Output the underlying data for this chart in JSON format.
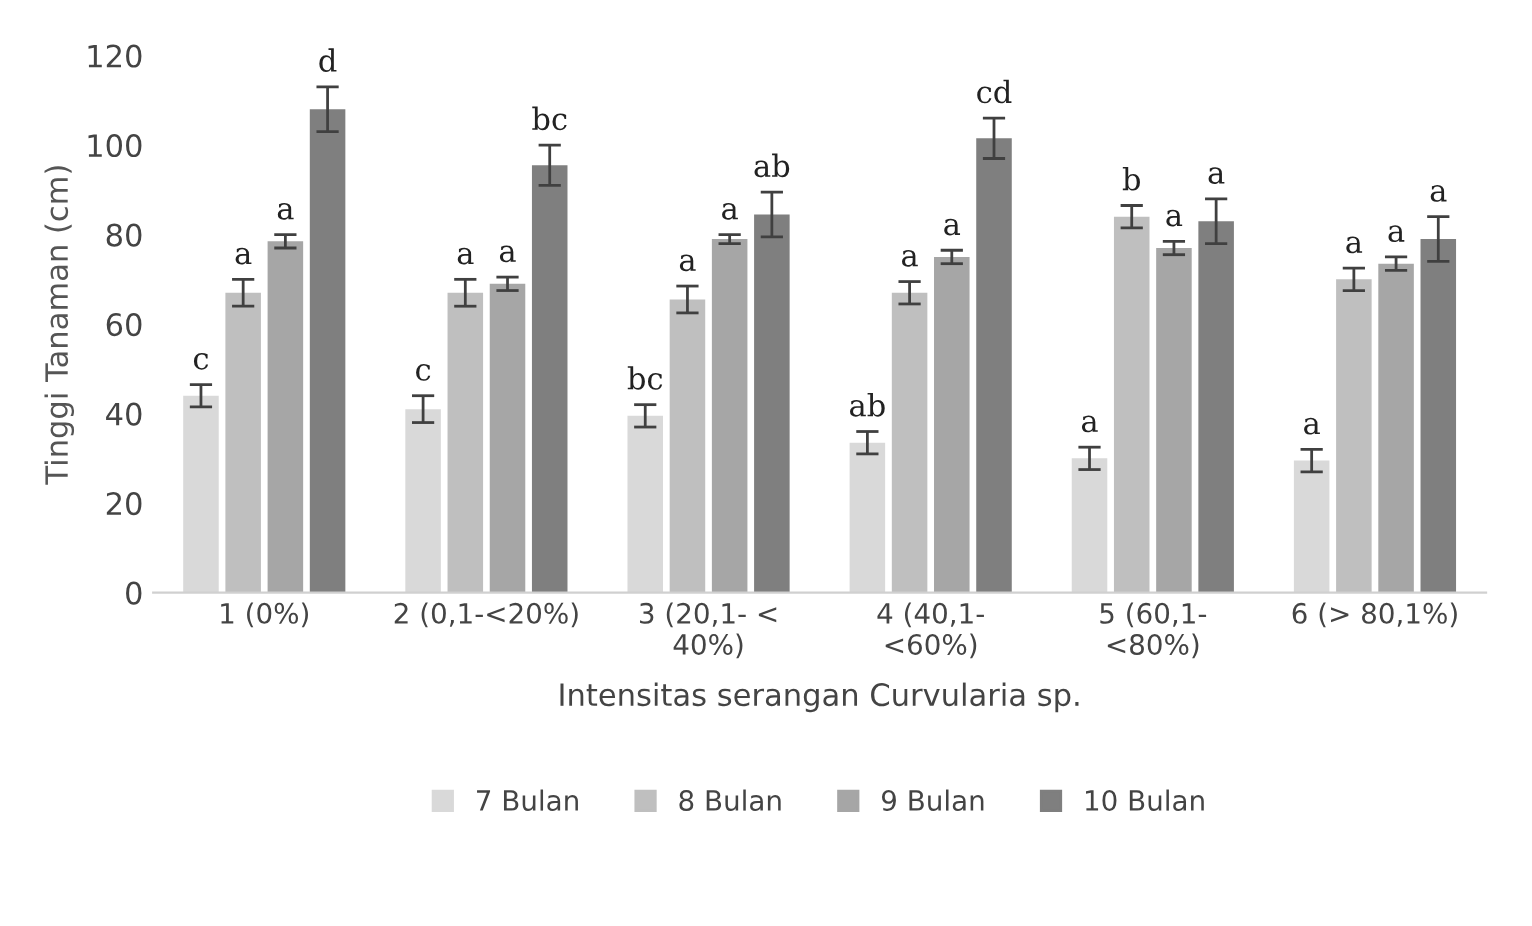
{
  "chart_data": {
    "type": "bar",
    "ylabel": "Tinggi Tanaman (cm)",
    "xlabel": "Intensitas serangan Curvularia sp.",
    "categories": [
      "1 (0%)",
      "2 (0,1-<20%)",
      "3 (20,1- <\n40%)",
      "4 (40,1-\n<60%)",
      "5 (60,1-\n<80%)",
      "6 (> 80,1%)"
    ],
    "series": [
      {
        "name": "7 Bulan",
        "color": "#d9d9d9",
        "values": [
          44,
          41,
          39.5,
          33.5,
          30,
          29.5
        ],
        "errors": [
          2.5,
          3,
          2.5,
          2.5,
          2.5,
          2.5
        ],
        "value_labels": [
          "c",
          "c",
          "bc",
          "ab",
          "a",
          "a"
        ]
      },
      {
        "name": "8 Bulan",
        "color": "#bfbfbf",
        "values": [
          67,
          67,
          65.5,
          67,
          84,
          70
        ],
        "errors": [
          3,
          3,
          3,
          2.5,
          2.5,
          2.5
        ],
        "value_labels": [
          "a",
          "a",
          "a",
          "a",
          "b",
          "a"
        ]
      },
      {
        "name": "9 Bulan",
        "color": "#a6a6a6",
        "values": [
          78.5,
          69,
          79,
          75,
          77,
          73.5
        ],
        "errors": [
          1.5,
          1.5,
          1,
          1.5,
          1.5,
          1.5
        ],
        "value_labels": [
          "a",
          "a",
          "a",
          "a",
          "a",
          "a"
        ]
      },
      {
        "name": "10 Bulan",
        "color": "#7f7f7f",
        "values": [
          108,
          95.5,
          84.5,
          101.5,
          83,
          79
        ],
        "errors": [
          5,
          4.5,
          5,
          4.5,
          5,
          5
        ],
        "value_labels": [
          "d",
          "bc",
          "ab",
          "cd",
          "a",
          "a"
        ]
      }
    ],
    "ylim": [
      0,
      120
    ],
    "yticks": [
      0,
      20,
      40,
      60,
      80,
      100,
      120
    ],
    "grid": false,
    "legend": "bottom"
  }
}
